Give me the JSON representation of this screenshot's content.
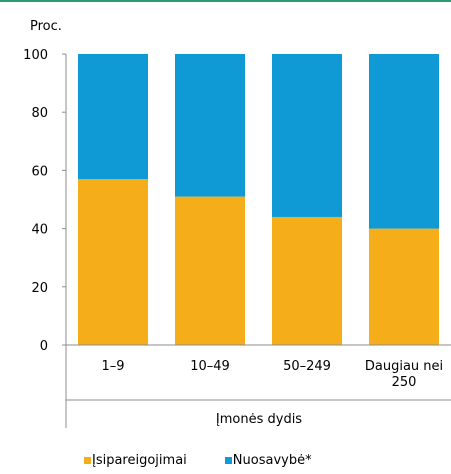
{
  "colors": {
    "top_rule": "#2e9a78",
    "axis": "#8c8c8c"
  },
  "chart_data": {
    "type": "bar",
    "stacked": true,
    "ylabel": "Proc.",
    "xlabel": "Įmonės dydis",
    "ylim": [
      0,
      100
    ],
    "yticks": [
      "0",
      "20",
      "40",
      "60",
      "80",
      "100"
    ],
    "categories": [
      "1–9",
      "10–49",
      "50–249",
      "Daugiau nei 250"
    ],
    "category_lines": [
      [
        "1–9"
      ],
      [
        "10–49"
      ],
      [
        "50–249"
      ],
      [
        "Daugiau nei",
        "250"
      ]
    ],
    "series": [
      {
        "name": "Įsipareigojimai",
        "color": "#f5ad19",
        "values": [
          57,
          51,
          44,
          40
        ]
      },
      {
        "name": "Nuosavybė*",
        "color": "#0f9ad6",
        "values": [
          43,
          49,
          56,
          60
        ]
      }
    ],
    "legend_position": "bottom",
    "grid": false
  }
}
